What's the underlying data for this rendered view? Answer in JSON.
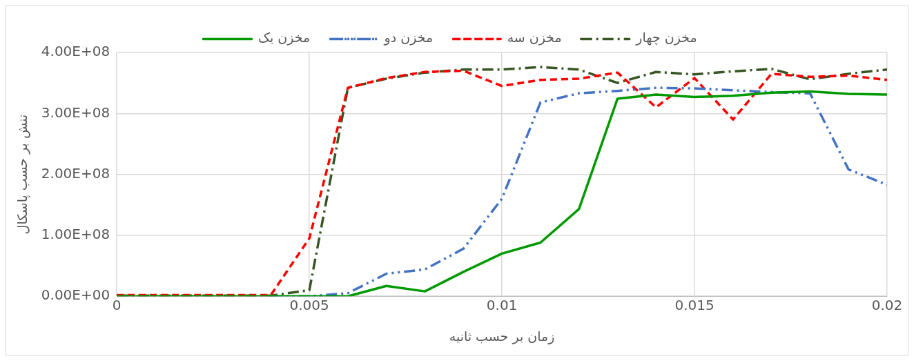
{
  "chart_data": {
    "type": "line",
    "xlabel": "زمان بر حسب ثانیه",
    "ylabel": "تنش بر حسب پاسکال",
    "x": [
      0,
      0.001,
      0.002,
      0.003,
      0.004,
      0.005,
      0.006,
      0.007,
      0.008,
      0.009,
      0.01,
      0.011,
      0.012,
      0.013,
      0.014,
      0.015,
      0.016,
      0.017,
      0.018,
      0.019,
      0.02
    ],
    "series": [
      {
        "name": "مخزن یک",
        "color": "#009900",
        "line_style": "solid",
        "values": [
          0,
          0,
          0,
          0,
          0,
          0,
          0,
          17000000,
          8000000,
          40000000,
          70000000,
          88000000,
          143000000,
          324000000,
          331000000,
          327000000,
          329000000,
          334000000,
          336000000,
          332000000,
          331000000
        ]
      },
      {
        "name": "مخزن دو",
        "color": "#4472c4",
        "line_style": "dashdotdot",
        "values": [
          null,
          null,
          null,
          null,
          0,
          0,
          5000000,
          37000000,
          44000000,
          78000000,
          160000000,
          318000000,
          333000000,
          337000000,
          342000000,
          341000000,
          338000000,
          335000000,
          333000000,
          208000000,
          183000000
        ]
      },
      {
        "name": "مخزن سه",
        "color": "#ff0000",
        "line_style": "dashed",
        "values": [
          2000000,
          2000000,
          2000000,
          2000000,
          2000000,
          95000000,
          342000000,
          358000000,
          368000000,
          370000000,
          345000000,
          355000000,
          357000000,
          367000000,
          310000000,
          358000000,
          290000000,
          365000000,
          360000000,
          362000000,
          355000000
        ]
      },
      {
        "name": "مخزن چهار",
        "color": "#375623",
        "line_style": "dashdot",
        "values": [
          1000000,
          1000000,
          1000000,
          1000000,
          1000000,
          10000000,
          342000000,
          357000000,
          367000000,
          372000000,
          372000000,
          376000000,
          372000000,
          350000000,
          368000000,
          364000000,
          369000000,
          373000000,
          356000000,
          365000000,
          372000000
        ]
      }
    ],
    "xlim": [
      0,
      0.02
    ],
    "xticks": [
      0,
      0.005,
      0.01,
      0.015,
      0.02
    ],
    "ylim": [
      0,
      400000000
    ],
    "yticks": [
      {
        "value": 0,
        "label": "0.00E+00"
      },
      {
        "value": 100000000,
        "label": "1.00E+08"
      },
      {
        "value": 200000000,
        "label": "2.00E+08"
      },
      {
        "value": 300000000,
        "label": "3.00E+08"
      },
      {
        "value": 400000000,
        "label": "4.00E+08"
      }
    ],
    "grid": true,
    "legend": "top",
    "marker": "none"
  }
}
